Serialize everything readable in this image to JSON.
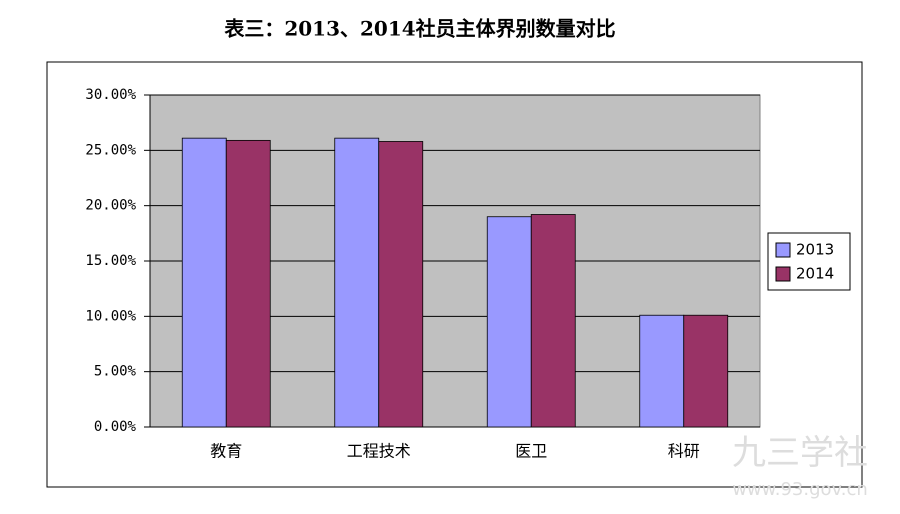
{
  "chart_data": {
    "type": "bar",
    "title": "表三：2013、2014社员主体界别数量对比",
    "categories": [
      "教育",
      "工程技术",
      "医卫",
      "科研"
    ],
    "series": [
      {
        "name": "2013",
        "color": "#9999ff",
        "values": [
          26.1,
          26.1,
          19.0,
          10.1
        ]
      },
      {
        "name": "2014",
        "color": "#993366",
        "values": [
          25.9,
          25.8,
          19.2,
          10.1
        ]
      }
    ],
    "ylim": [
      0,
      30
    ],
    "yticks": [
      {
        "value": 0,
        "label": "0.00%"
      },
      {
        "value": 5,
        "label": "5.00%"
      },
      {
        "value": 10,
        "label": "10.00%"
      },
      {
        "value": 15,
        "label": "15.00%"
      },
      {
        "value": 20,
        "label": "20.00%"
      },
      {
        "value": 25,
        "label": "25.00%"
      },
      {
        "value": 30,
        "label": "30.00%"
      }
    ],
    "grid": true,
    "legend": "right",
    "watermark": "九三学社",
    "watermark_url": "www.93.gov.cn"
  }
}
